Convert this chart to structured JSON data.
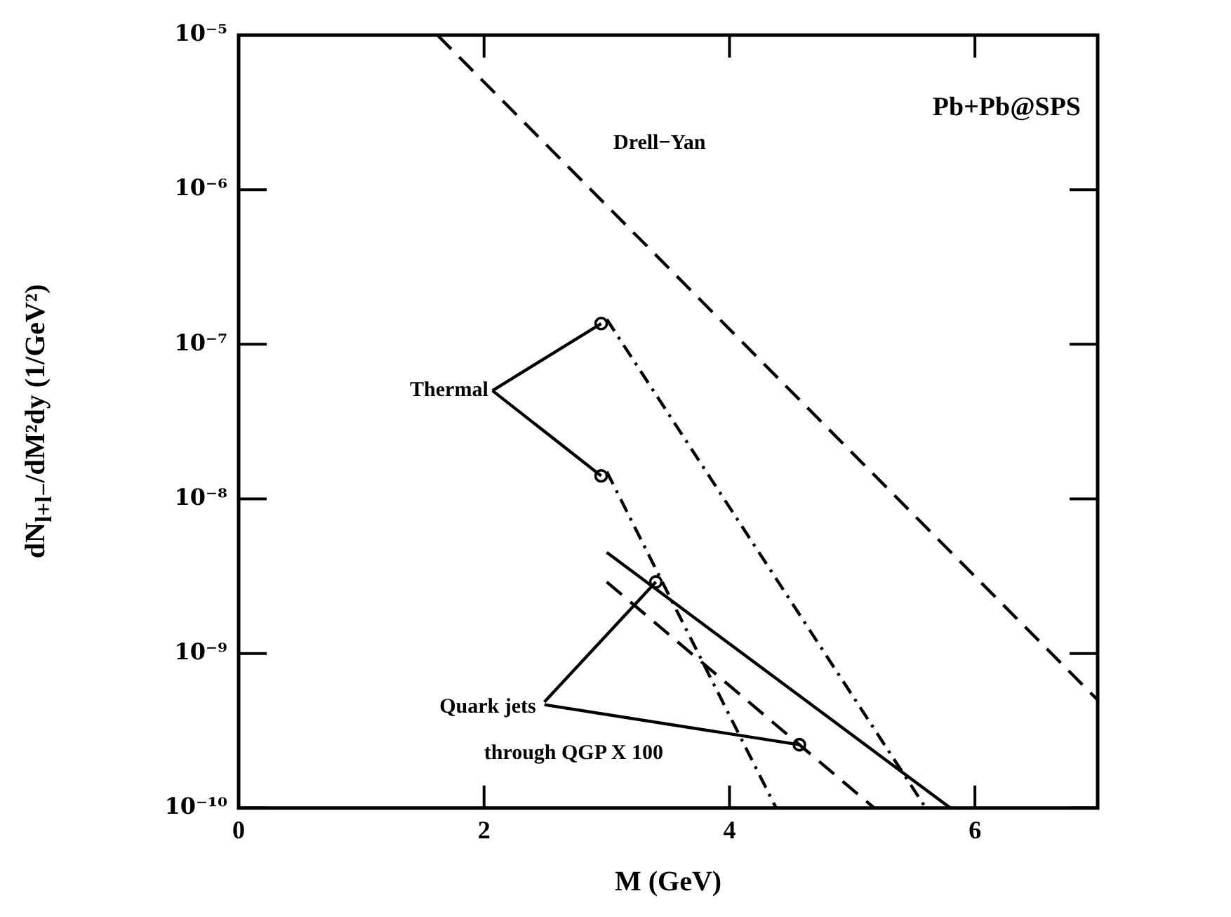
{
  "chart_data": {
    "type": "line",
    "xlabel": "M (GeV)",
    "ylabel": "dN$_{l+l−}$/dM²dy (1/GeV²)",
    "log": "y",
    "xlim": [
      0,
      7
    ],
    "xticks": [
      0,
      2,
      4,
      6
    ],
    "ylim": [
      1e-10,
      1e-05
    ],
    "yticks": [
      {
        "value": 1e-10,
        "label": "10⁻¹⁰"
      },
      {
        "value": 1e-09,
        "label": "10⁻⁹"
      },
      {
        "value": 1e-08,
        "label": "10⁻⁸"
      },
      {
        "value": 1e-07,
        "label": "10⁻⁷"
      },
      {
        "value": 1e-06,
        "label": "10⁻⁶"
      },
      {
        "value": 1e-05,
        "label": "10⁻⁵"
      }
    ],
    "series": [
      {
        "color": "#000000",
        "line_style": "dashed",
        "x": [
          1.62,
          7
        ],
        "values": [
          1e-05,
          5e-10
        ]
      },
      {
        "color": "#000000",
        "line_style": "dotted",
        "x": [
          3.0,
          5.6
        ],
        "values": [
          1.45e-07,
          1e-10
        ]
      },
      {
        "color": "#000000",
        "line_style": "dotted",
        "x": [
          3.0,
          4.38
        ],
        "values": [
          1.5e-08,
          1e-10
        ]
      },
      {
        "color": "#000000",
        "line_style": "solid",
        "x": [
          3.0,
          5.8
        ],
        "values": [
          4.5e-09,
          1e-10
        ]
      },
      {
        "color": "#000000",
        "line_style": "dashed",
        "x": [
          3.0,
          5.18
        ],
        "values": [
          2.9e-09,
          1e-10
        ]
      }
    ],
    "annotations": [
      "Pb+Pb@SPS",
      "Drell−Yan",
      {
        "text": "Thermal",
        "x": 3.0,
        "y": 1.45e-07
      },
      {
        "text": "Quark jets",
        "x": 3.4,
        "y": 2.9e-09
      },
      "through QGP X 100"
    ]
  }
}
